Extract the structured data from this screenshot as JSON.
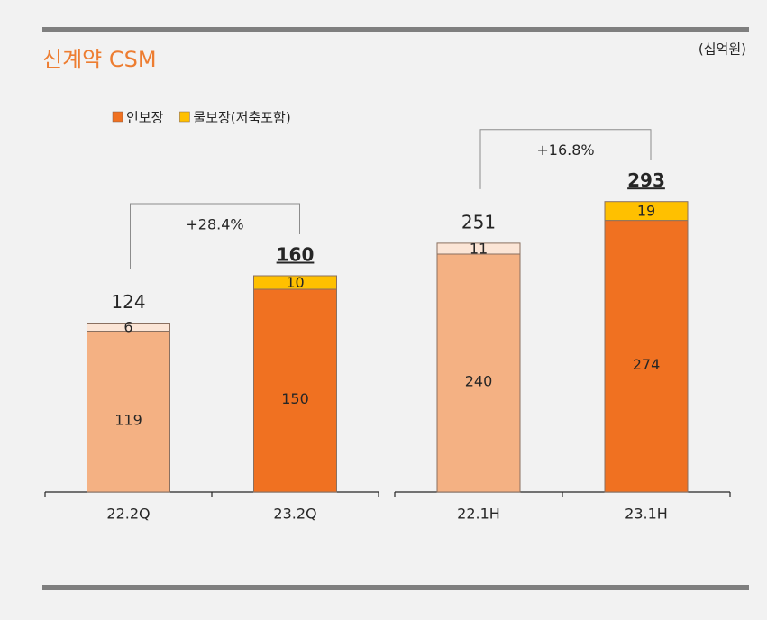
{
  "header": {
    "title": "신계약 CSM",
    "unit": "(십억원)"
  },
  "chart_data": [
    {
      "type": "stacked-bar",
      "categories": [
        "22.2Q",
        "23.2Q"
      ],
      "series": [
        {
          "name": "인보장",
          "color": "#f07121",
          "point_colors": [
            "#f4b183",
            "#f07121"
          ],
          "values": [
            119,
            150
          ]
        },
        {
          "name": "물보장(저축포함)",
          "color": "#ffc000",
          "point_colors": [
            "#fbe5d6",
            "#ffc000"
          ],
          "values": [
            6,
            10
          ]
        }
      ],
      "totals": [
        124,
        160
      ],
      "growth": "+28.4%",
      "ylim": [
        0,
        220
      ]
    },
    {
      "type": "stacked-bar",
      "categories": [
        "22.1H",
        "23.1H"
      ],
      "series": [
        {
          "name": "인보장",
          "color": "#f07121",
          "point_colors": [
            "#f4b183",
            "#f07121"
          ],
          "values": [
            240,
            274
          ]
        },
        {
          "name": "물보장(저축포함)",
          "color": "#ffc000",
          "point_colors": [
            "#fbe5d6",
            "#ffc000"
          ],
          "values": [
            11,
            19
          ]
        }
      ],
      "totals": [
        251,
        293
      ],
      "growth": "+16.8%",
      "ylim": [
        0,
        300
      ]
    }
  ]
}
